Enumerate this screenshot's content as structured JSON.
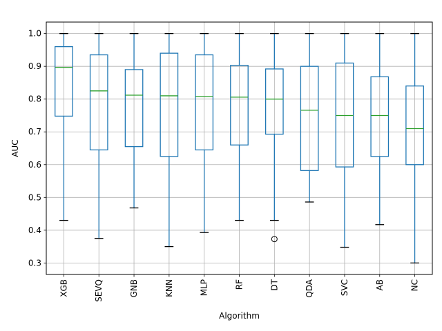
{
  "chart_data": {
    "type": "boxplot",
    "xlabel": "Algorithm",
    "ylabel": "AUC",
    "ylim": [
      0.265,
      1.035
    ],
    "yticks": [
      0.3,
      0.4,
      0.5,
      0.6,
      0.7,
      0.8,
      0.9,
      1.0
    ],
    "ytick_labels": [
      "0.3",
      "0.4",
      "0.5",
      "0.6",
      "0.7",
      "0.8",
      "0.9",
      "1.0"
    ],
    "grid": true,
    "colors": {
      "box": "#1f77b4",
      "median": "#2ca02c",
      "whisker": "#1f77b4",
      "cap": "#000000",
      "grid": "#b0b0b0"
    },
    "categories": [
      "XGB",
      "SEVQ",
      "GNB",
      "KNN",
      "MLP",
      "RF",
      "DT",
      "QDA",
      "SVC",
      "AB",
      "NC"
    ],
    "boxes": [
      {
        "name": "XGB",
        "whislo": 0.43,
        "q1": 0.748,
        "med": 0.897,
        "q3": 0.96,
        "whishi": 1.0,
        "fliers": []
      },
      {
        "name": "SEVQ",
        "whislo": 0.375,
        "q1": 0.645,
        "med": 0.825,
        "q3": 0.935,
        "whishi": 1.0,
        "fliers": []
      },
      {
        "name": "GNB",
        "whislo": 0.468,
        "q1": 0.655,
        "med": 0.812,
        "q3": 0.89,
        "whishi": 1.0,
        "fliers": []
      },
      {
        "name": "KNN",
        "whislo": 0.35,
        "q1": 0.625,
        "med": 0.81,
        "q3": 0.94,
        "whishi": 1.0,
        "fliers": []
      },
      {
        "name": "MLP",
        "whislo": 0.393,
        "q1": 0.645,
        "med": 0.808,
        "q3": 0.935,
        "whishi": 1.0,
        "fliers": []
      },
      {
        "name": "RF",
        "whislo": 0.43,
        "q1": 0.66,
        "med": 0.806,
        "q3": 0.903,
        "whishi": 1.0,
        "fliers": []
      },
      {
        "name": "DT",
        "whislo": 0.43,
        "q1": 0.693,
        "med": 0.8,
        "q3": 0.892,
        "whishi": 1.0,
        "fliers": [
          0.373
        ]
      },
      {
        "name": "QDA",
        "whislo": 0.486,
        "q1": 0.582,
        "med": 0.766,
        "q3": 0.9,
        "whishi": 1.0,
        "fliers": []
      },
      {
        "name": "SVC",
        "whislo": 0.348,
        "q1": 0.593,
        "med": 0.75,
        "q3": 0.91,
        "whishi": 1.0,
        "fliers": []
      },
      {
        "name": "AB",
        "whislo": 0.417,
        "q1": 0.625,
        "med": 0.75,
        "q3": 0.868,
        "whishi": 1.0,
        "fliers": []
      },
      {
        "name": "NC",
        "whislo": 0.3,
        "q1": 0.6,
        "med": 0.71,
        "q3": 0.84,
        "whishi": 1.0,
        "fliers": []
      }
    ]
  }
}
